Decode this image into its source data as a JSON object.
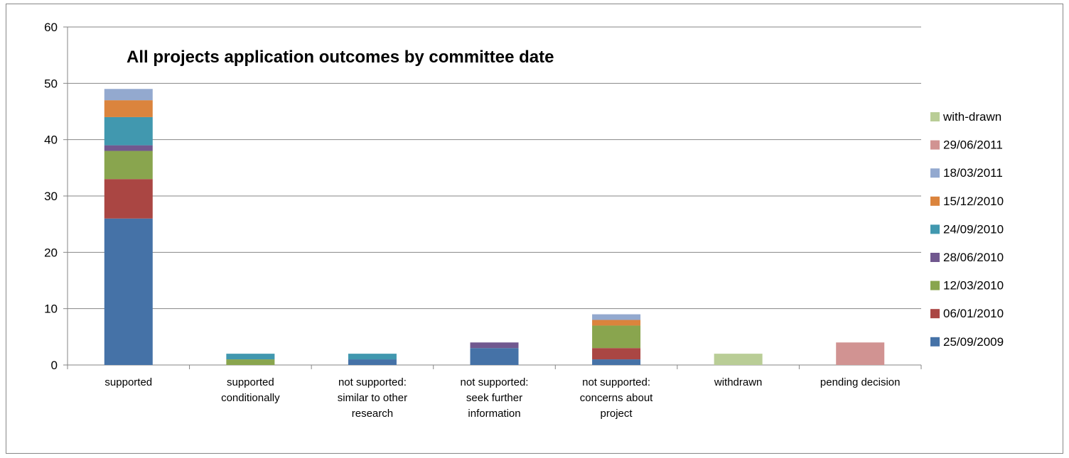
{
  "chart_data": {
    "type": "bar",
    "stacked": true,
    "title": "All projects application outcomes by committee date",
    "categories": [
      [
        "supported"
      ],
      [
        "supported",
        "conditionally"
      ],
      [
        "not supported:",
        "similar to other",
        "research"
      ],
      [
        "not supported:",
        "seek further",
        "information"
      ],
      [
        "not supported:",
        "concerns about",
        "project"
      ],
      [
        "withdrawn"
      ],
      [
        "pending decision"
      ]
    ],
    "ylim": [
      0,
      60
    ],
    "yticks": [
      0,
      10,
      20,
      30,
      40,
      50,
      60
    ],
    "grid": true,
    "legend_position": "right",
    "series": [
      {
        "name": "25/09/2009",
        "color": "#4572A7",
        "values": [
          26,
          0,
          1,
          3,
          1,
          0,
          0
        ]
      },
      {
        "name": "06/01/2010",
        "color": "#AA4643",
        "values": [
          7,
          0,
          0,
          0,
          2,
          0,
          0
        ]
      },
      {
        "name": "12/03/2010",
        "color": "#89A54E",
        "values": [
          5,
          1,
          0,
          0,
          4,
          0,
          0
        ]
      },
      {
        "name": "28/06/2010",
        "color": "#71588F",
        "values": [
          1,
          0,
          0,
          1,
          0,
          0,
          0
        ]
      },
      {
        "name": "24/09/2010",
        "color": "#4198AF",
        "values": [
          5,
          1,
          1,
          0,
          0,
          0,
          0
        ]
      },
      {
        "name": "15/12/2010",
        "color": "#DB843D",
        "values": [
          3,
          0,
          0,
          0,
          1,
          0,
          0
        ]
      },
      {
        "name": "18/03/2011",
        "color": "#93A9CF",
        "values": [
          2,
          0,
          0,
          0,
          1,
          0,
          0
        ]
      },
      {
        "name": "29/06/2011",
        "color": "#D19392",
        "values": [
          0,
          0,
          0,
          0,
          0,
          0,
          4
        ]
      },
      {
        "name": "with-drawn",
        "color": "#B9CD96",
        "values": [
          0,
          0,
          0,
          0,
          0,
          2,
          0
        ]
      }
    ]
  }
}
